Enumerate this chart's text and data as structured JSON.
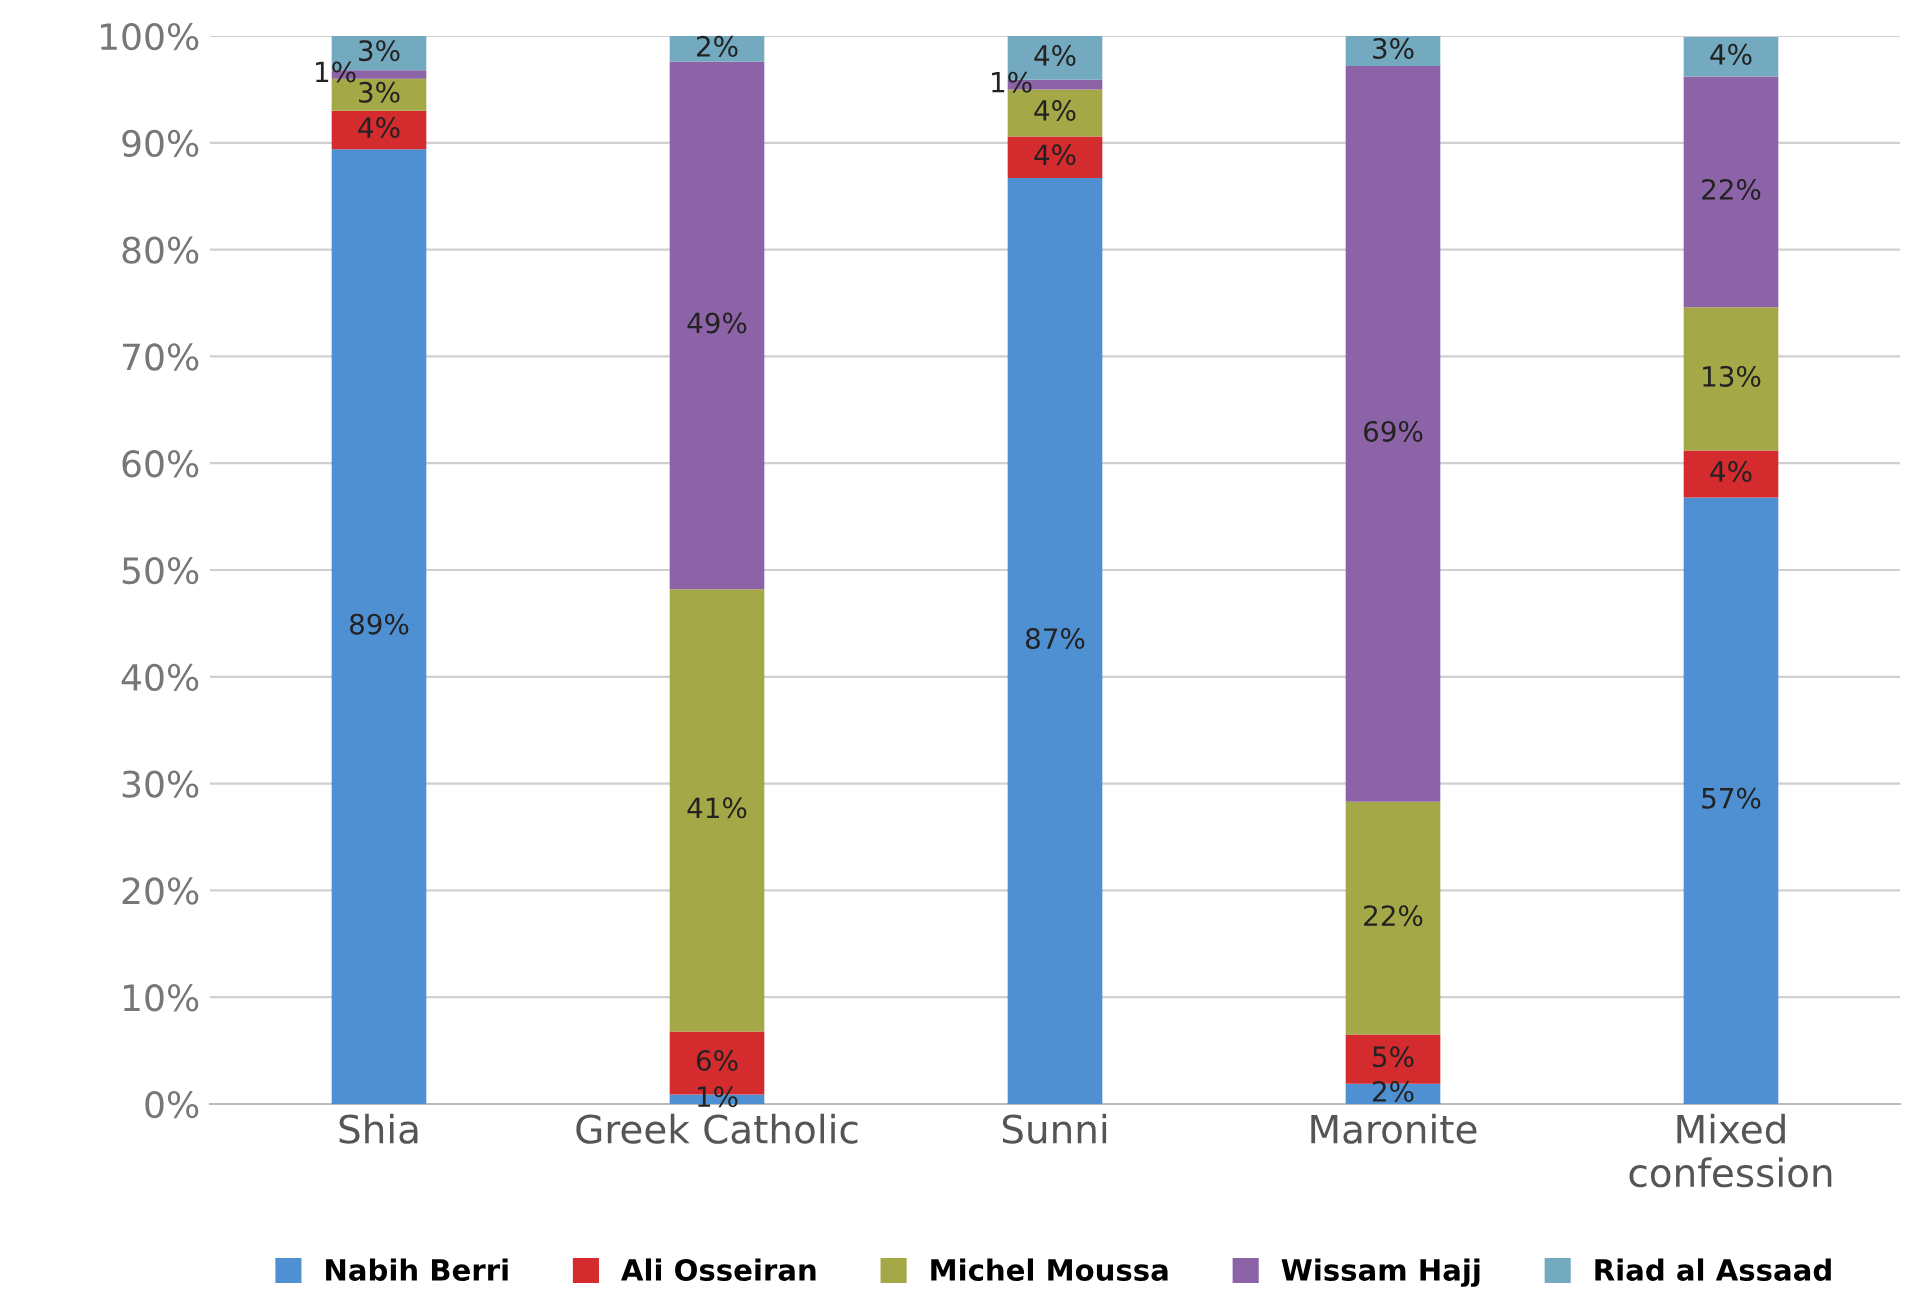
{
  "chart_data": {
    "type": "bar",
    "stacked": true,
    "categories": [
      "Shia",
      "Greek Catholic",
      "Sunni",
      "Maronite",
      "Mixed\nconfession"
    ],
    "series": [
      {
        "name": "Nabih Berri",
        "color": "#4f90d2",
        "values": [
          89.4,
          0.9,
          86.7,
          1.9,
          56.8
        ],
        "value_labels": [
          "89%",
          "1%",
          "87%",
          "2%",
          "57%"
        ]
      },
      {
        "name": "Ali Osseiran",
        "color": "#d42b2f",
        "values": [
          3.6,
          5.9,
          3.9,
          4.6,
          4.4
        ],
        "value_labels": [
          "4%",
          "6%",
          "4%",
          "5%",
          "4%"
        ]
      },
      {
        "name": "Michel Moussa",
        "color": "#a5a846",
        "values": [
          3.0,
          41.4,
          4.4,
          21.8,
          13.4
        ],
        "value_labels": [
          "3%",
          "41%",
          "4%",
          "22%",
          "13%"
        ]
      },
      {
        "name": "Wissam Hajj",
        "color": "#8d63a8",
        "values": [
          0.8,
          49.4,
          0.9,
          68.9,
          21.6
        ],
        "value_labels": [
          "1%",
          "49%",
          "1%",
          "69%",
          "22%"
        ]
      },
      {
        "name": "Riad al Assaad",
        "color": "#74aabf",
        "values": [
          3.2,
          2.4,
          4.1,
          2.8,
          3.7
        ],
        "value_labels": [
          "3%",
          "2%",
          "4%",
          "3%",
          "4%"
        ]
      }
    ],
    "ylim": [
      0,
      100
    ],
    "yticks": [
      {
        "value": 0,
        "label": "0%"
      },
      {
        "value": 10,
        "label": "10%"
      },
      {
        "value": 20,
        "label": "20%"
      },
      {
        "value": 30,
        "label": "30%"
      },
      {
        "value": 40,
        "label": "40%"
      },
      {
        "value": 50,
        "label": "50%"
      },
      {
        "value": 60,
        "label": "60%"
      },
      {
        "value": 70,
        "label": "70%"
      },
      {
        "value": 80,
        "label": "80%"
      },
      {
        "value": 90,
        "label": "90%"
      },
      {
        "value": 100,
        "label": "100%"
      }
    ],
    "grid": "y",
    "legend": "bottom"
  }
}
